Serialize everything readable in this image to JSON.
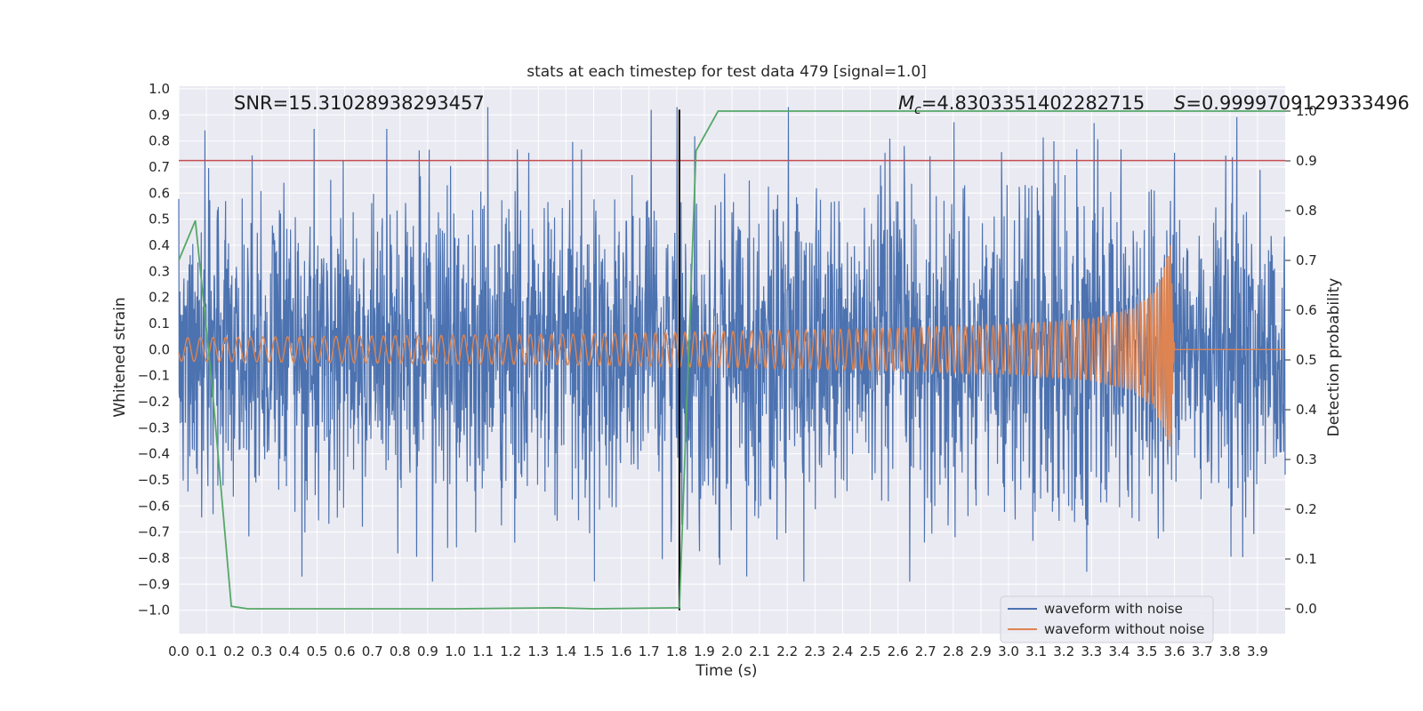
{
  "chart_data": {
    "type": "line",
    "title": "stats at each timestep for test data 479 [signal=1.0]",
    "xlabel": "Time (s)",
    "ylabel": "Whitened strain",
    "y2label": "Detection probability",
    "xlim": [
      0.0,
      4.0
    ],
    "ylim": [
      -1.09,
      1.01
    ],
    "y2lim": [
      -0.05,
      1.05
    ],
    "x_ticks": [
      0.0,
      0.1,
      0.2,
      0.3,
      0.4,
      0.5,
      0.6,
      0.7,
      0.8,
      0.9,
      1.0,
      1.1,
      1.2,
      1.3,
      1.4,
      1.5,
      1.6,
      1.7,
      1.8,
      1.9,
      2.0,
      2.1,
      2.2,
      2.3,
      2.4,
      2.5,
      2.6,
      2.7,
      2.8,
      2.9,
      3.0,
      3.1,
      3.2,
      3.3,
      3.4,
      3.5,
      3.6,
      3.7,
      3.8,
      3.9
    ],
    "x_tick_labels": [
      "0.0",
      "0.1",
      "0.2",
      "0.3",
      "0.4",
      "0.5",
      "0.6",
      "0.7",
      "0.8",
      "0.9",
      "1.0",
      "1.1",
      "1.2",
      "1.3",
      "1.4",
      "1.5",
      "1.6",
      "1.7",
      "1.8",
      "1.9",
      "2.0",
      "2.1",
      "2.2",
      "2.3",
      "2.4",
      "2.5",
      "2.6",
      "2.7",
      "2.8",
      "2.9",
      "3.0",
      "3.1",
      "3.2",
      "3.3",
      "3.4",
      "3.5",
      "3.6",
      "3.7",
      "3.8",
      "3.9"
    ],
    "y_ticks": [
      1.0,
      0.9,
      0.8,
      0.7,
      0.6,
      0.5,
      0.4,
      0.3,
      0.2,
      0.1,
      0.0,
      -0.1,
      -0.2,
      -0.3,
      -0.4,
      -0.5,
      -0.6,
      -0.7,
      -0.8,
      -0.9,
      -1.0
    ],
    "y_tick_labels": [
      "1.0",
      "0.9",
      "0.8",
      "0.7",
      "0.6",
      "0.5",
      "0.4",
      "0.3",
      "0.2",
      "0.1",
      "0.0",
      "−0.1",
      "−0.2",
      "−0.3",
      "−0.4",
      "−0.5",
      "−0.6",
      "−0.7",
      "−0.8",
      "−0.9",
      "−1.0"
    ],
    "y2_ticks": [
      1.0,
      0.9,
      0.8,
      0.7,
      0.6,
      0.5,
      0.4,
      0.3,
      0.2,
      0.1,
      0.0
    ],
    "y2_tick_labels": [
      "1.0",
      "0.9",
      "0.8",
      "0.7",
      "0.6",
      "0.5",
      "0.4",
      "0.3",
      "0.2",
      "0.1",
      "0.0"
    ],
    "grid": true,
    "legend_position": "bottom-right",
    "series": [
      {
        "name": "waveform with noise",
        "axis": "left",
        "color": "#4c72b0",
        "description_values": "noisy whitened strain oscillating roughly between -0.9 and 0.9 across 0.0-4.0 s",
        "amplitude_range": [
          -0.89,
          0.93
        ]
      },
      {
        "name": "waveform without noise",
        "axis": "left",
        "color": "#dd8452",
        "envelope": {
          "x": [
            0.0,
            0.5,
            1.0,
            1.5,
            2.0,
            2.5,
            3.0,
            3.3,
            3.45,
            3.52,
            3.56,
            3.585,
            3.6,
            4.0
          ],
          "amplitude": [
            0.045,
            0.05,
            0.055,
            0.06,
            0.07,
            0.08,
            0.095,
            0.12,
            0.16,
            0.22,
            0.3,
            0.41,
            0.0,
            0.0
          ]
        }
      },
      {
        "name": "detection probability",
        "axis": "right",
        "color": "#55a868",
        "x": [
          0.0,
          0.06,
          0.12,
          0.19,
          0.25,
          1.0,
          1.37,
          1.5,
          1.81,
          1.87,
          1.95,
          4.0
        ],
        "y": [
          0.7,
          0.78,
          0.45,
          0.005,
          0.0,
          0.0,
          0.002,
          0.0,
          0.002,
          0.92,
          1.0,
          1.0
        ]
      }
    ],
    "reference_lines": [
      {
        "type": "horizontal",
        "axis": "left",
        "value": 0.725,
        "color": "#c44e52"
      },
      {
        "type": "vertical",
        "value": 1.81,
        "y_range": [
          -1.0,
          0.92
        ],
        "color": "#000000"
      }
    ],
    "annotations": {
      "snr": "SNR=15.31028938293457",
      "mc_prefix": "M",
      "mc_sub": "c",
      "mc_value": "=4.8303351402282715",
      "s_label": "S",
      "s_value": "=0.9999709129333496"
    },
    "legend": [
      {
        "label": "waveform with noise",
        "color": "#4c72b0"
      },
      {
        "label": "waveform without noise",
        "color": "#dd8452"
      }
    ]
  },
  "colors": {
    "plot_background": "#eaeaf2",
    "grid": "#ffffff",
    "noise": "#4c72b0",
    "clean": "#dd8452",
    "probability": "#55a868",
    "threshold": "#c44e52",
    "marker": "#000000"
  }
}
